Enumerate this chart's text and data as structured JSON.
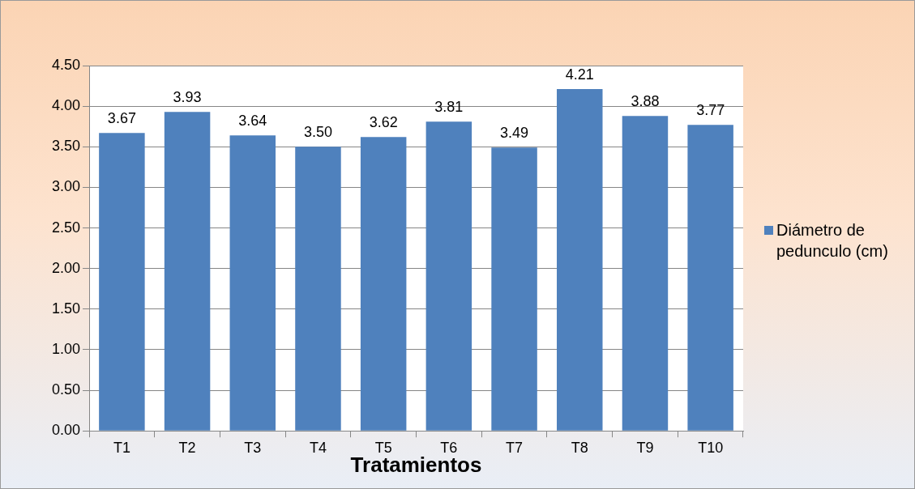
{
  "chart_data": {
    "type": "bar",
    "xlabel": "Tratamientos",
    "categories": [
      "T1",
      "T2",
      "T3",
      "T4",
      "T5",
      "T6",
      "T7",
      "T8",
      "T9",
      "T10"
    ],
    "series": [
      {
        "name": "Diámetro de pedunculo (cm)",
        "color": "#4f81bd",
        "values": [
          3.67,
          3.93,
          3.64,
          3.5,
          3.62,
          3.81,
          3.49,
          4.21,
          3.88,
          3.77
        ],
        "value_labels": [
          "3.67",
          "3.93",
          "3.64",
          "3.50",
          "3.62",
          "3.81",
          "3.49",
          "4.21",
          "3.88",
          "3.77"
        ]
      }
    ],
    "ylim": [
      0,
      4.5
    ],
    "yticks": [
      {
        "value": 0,
        "label": "0.00"
      },
      {
        "value": 0.5,
        "label": "0.50"
      },
      {
        "value": 1,
        "label": "1.00"
      },
      {
        "value": 1.5,
        "label": "1.50"
      },
      {
        "value": 2,
        "label": "2.00"
      },
      {
        "value": 2.5,
        "label": "2.50"
      },
      {
        "value": 3,
        "label": "3.00"
      },
      {
        "value": 3.5,
        "label": "3.50"
      },
      {
        "value": 4,
        "label": "4.00"
      },
      {
        "value": 4.5,
        "label": "4.50"
      }
    ],
    "grid": "y",
    "legend": "right"
  }
}
